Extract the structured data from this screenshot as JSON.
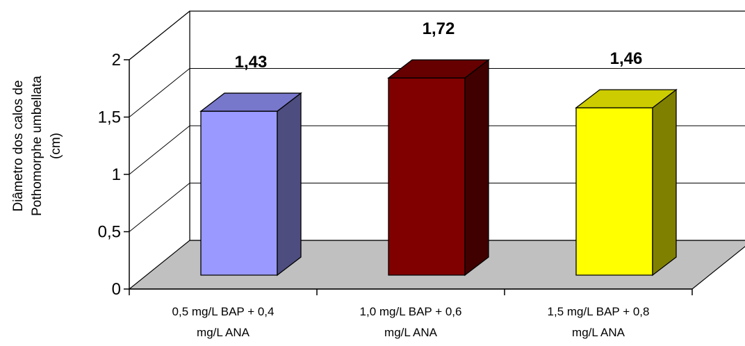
{
  "chart_data": {
    "type": "bar",
    "categories": [
      [
        "0,5 mg/L BAP + 0,4",
        "mg/L ANA"
      ],
      [
        "1,0 mg/L BAP + 0,6",
        "mg/L ANA"
      ],
      [
        "1,5 mg/L BAP + 0,8",
        "mg/L ANA"
      ]
    ],
    "values": [
      1.43,
      1.72,
      1.46
    ],
    "value_labels": [
      "1,43",
      "1,72",
      "1,46"
    ],
    "ylabel": [
      "Diâmetro dos calos de",
      "Pothomorphe umbellata",
      "(cm)"
    ],
    "ylim": [
      0,
      2
    ],
    "yticks": [
      0,
      0.5,
      1,
      1.5,
      2
    ],
    "ytick_labels": [
      "0",
      "0,5",
      "1",
      "1,5",
      "2"
    ],
    "grid": true,
    "legend": "none",
    "bar_colors": [
      {
        "front": "#9999ff",
        "top": "#7777cc",
        "side": "#4d4d80"
      },
      {
        "front": "#800000",
        "top": "#660000",
        "side": "#400000"
      },
      {
        "front": "#ffff00",
        "top": "#cccc00",
        "side": "#808000"
      }
    ],
    "floor_color": "#c0c0c0"
  }
}
